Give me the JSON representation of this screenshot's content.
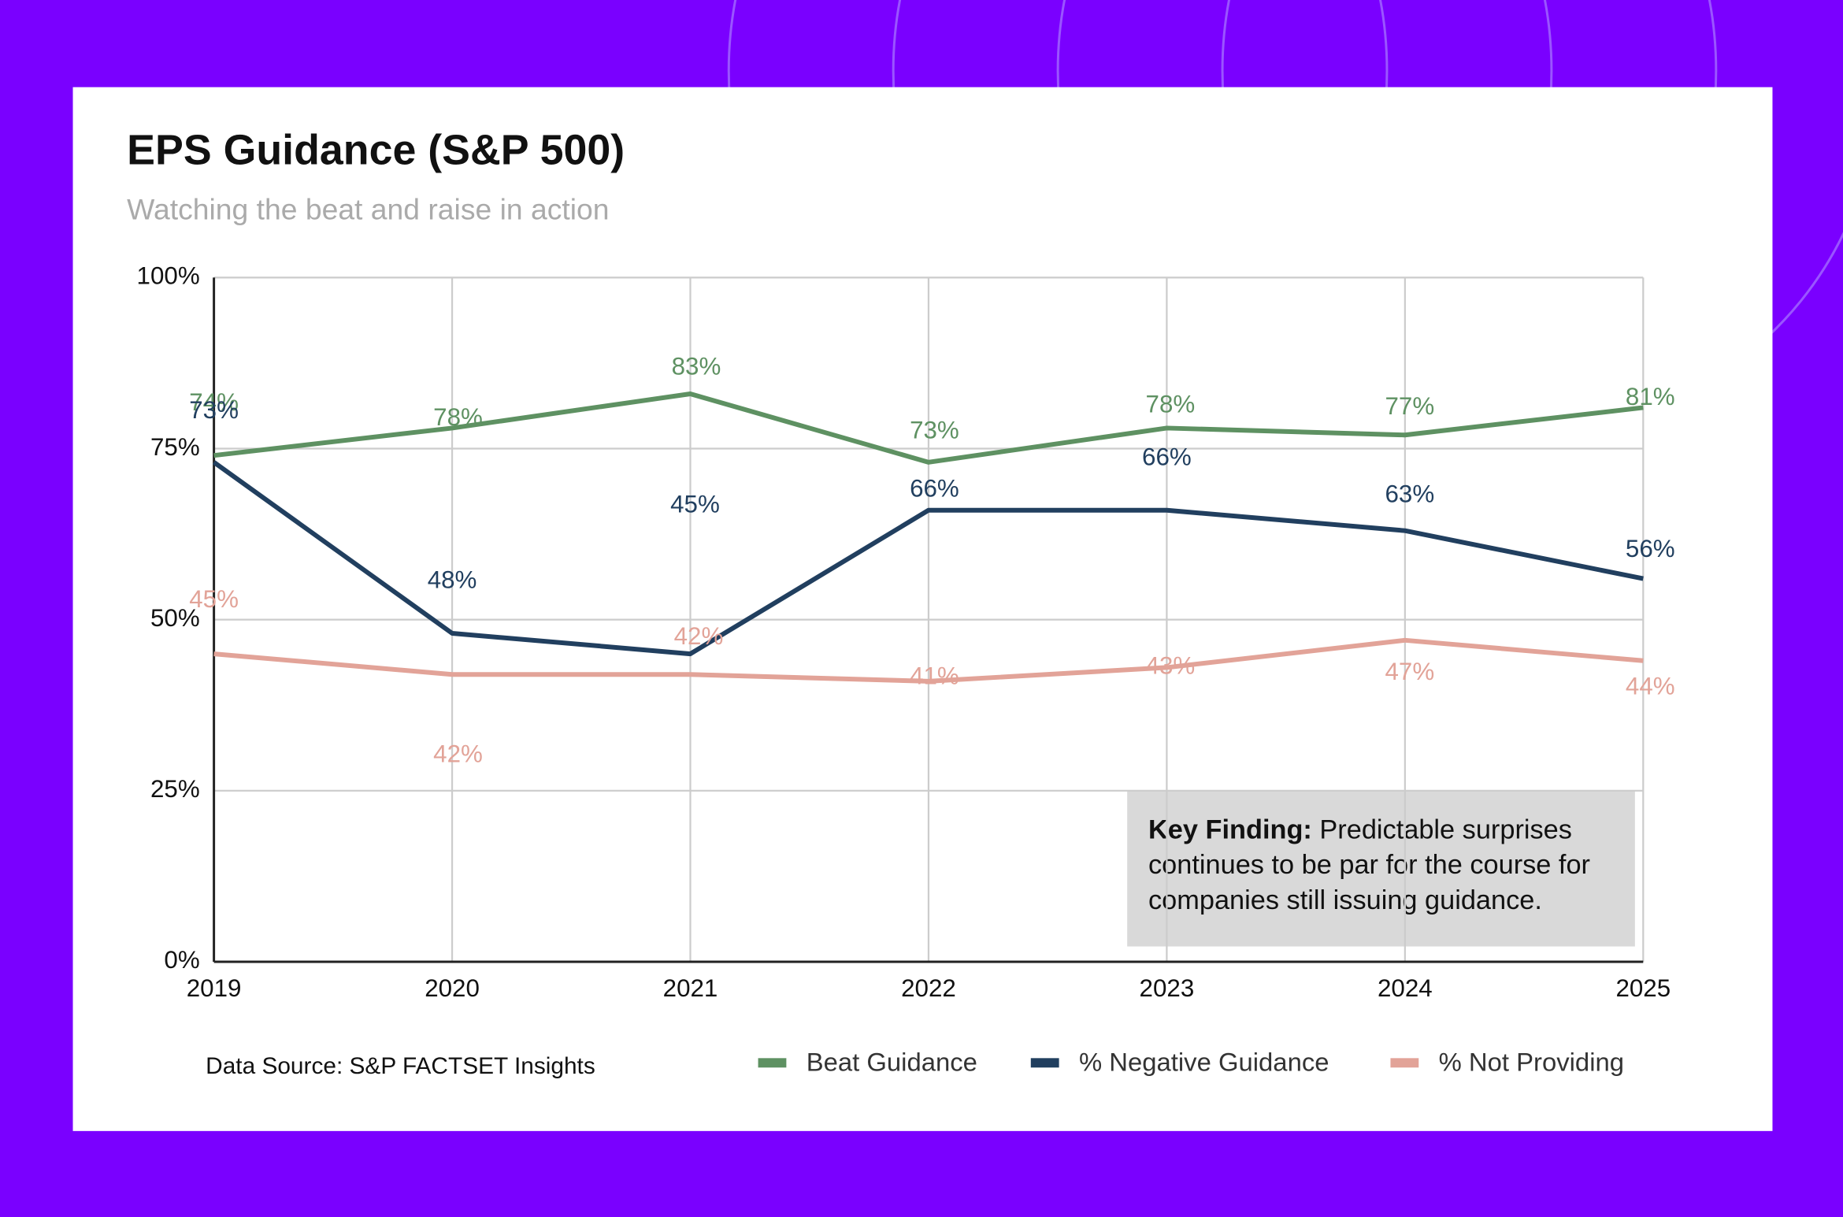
{
  "chart_data": {
    "type": "line",
    "title": "EPS Guidance (S&P 500)",
    "subtitle": "Watching the beat and raise in action",
    "source": "Data Source: S&P FACTSET Insights",
    "annotation_label": "Key Finding:",
    "annotation": "Predictable surprises continues to be par for the course for companies still issuing guidance.",
    "x": [
      2019,
      2020,
      2021,
      2022,
      2023,
      2024,
      2025
    ],
    "xlim": [
      2019,
      2025
    ],
    "xticks": [
      2019,
      2020,
      2021,
      2022,
      2023,
      2024,
      2025
    ],
    "ylim": [
      0,
      100
    ],
    "yticks": [
      {
        "value": 0,
        "label": "0%"
      },
      {
        "value": 25,
        "label": "25%"
      },
      {
        "value": 50,
        "label": "50%"
      },
      {
        "value": 75,
        "label": "75%"
      },
      {
        "value": 100,
        "label": "100%"
      }
    ],
    "grid": true,
    "legend": "bottom",
    "series": [
      {
        "name": "Beat Guidance",
        "color": "#5e9162",
        "values": [
          74,
          78,
          83,
          73,
          78,
          77,
          81
        ],
        "value_labels": [
          "74%",
          "78%",
          "83%",
          "73%",
          "78%",
          "77%",
          "81%"
        ]
      },
      {
        "name": "% Negative Guidance",
        "color": "#213f5f",
        "values": [
          73,
          48,
          45,
          66,
          66,
          63,
          56
        ],
        "value_labels": [
          "73%",
          "48%",
          "45%",
          "66%",
          "66%",
          "63%",
          "56%"
        ]
      },
      {
        "name": "% Not Providing",
        "color": "#e2a398",
        "values": [
          45,
          42,
          42,
          41,
          43,
          47,
          44
        ],
        "value_labels": [
          "45%",
          "42%",
          "42%",
          "41%",
          "43%",
          "47%",
          "44%"
        ]
      }
    ]
  }
}
